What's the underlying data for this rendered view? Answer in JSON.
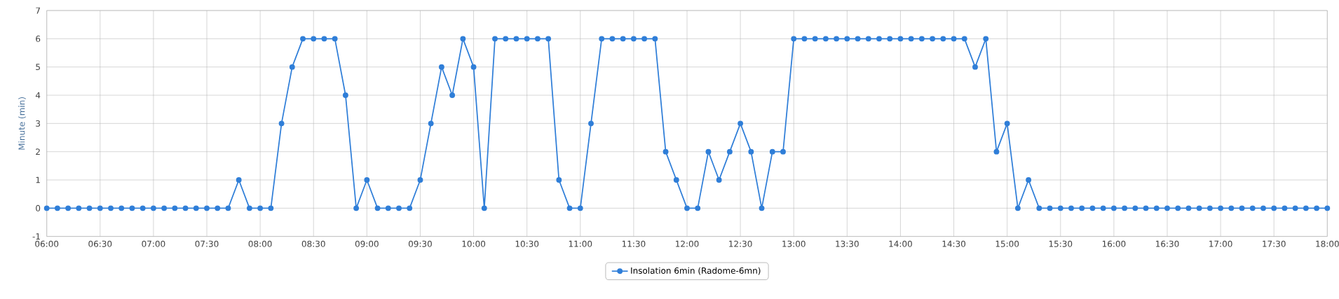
{
  "chart_data": {
    "type": "line",
    "ylabel": "Minute (min)",
    "x": [
      6,
      6.1,
      6.2,
      6.3,
      6.4,
      6.5,
      6.6,
      6.7,
      6.8,
      6.9,
      7,
      7.1,
      7.2,
      7.3,
      7.4,
      7.5,
      7.6,
      7.7,
      7.8,
      7.9,
      8,
      8.1,
      8.2,
      8.3,
      8.4,
      8.5,
      8.6,
      8.7,
      8.8,
      8.9,
      9,
      9.1,
      9.2,
      9.3,
      9.4,
      9.5,
      9.6,
      9.7,
      9.8,
      9.9,
      10,
      10.1,
      10.2,
      10.3,
      10.4,
      10.5,
      10.6,
      10.7,
      10.8,
      10.9,
      11,
      11.1,
      11.2,
      11.3,
      11.4,
      11.5,
      11.6,
      11.7,
      11.8,
      11.9,
      12,
      12.1,
      12.2,
      12.3,
      12.4,
      12.5,
      12.6,
      12.7,
      12.8,
      12.9,
      13,
      13.1,
      13.2,
      13.3,
      13.4,
      13.5,
      13.6,
      13.7,
      13.8,
      13.9,
      14,
      14.1,
      14.2,
      14.3,
      14.4,
      14.5,
      14.6,
      14.7,
      14.8,
      14.9,
      15,
      15.1,
      15.2,
      15.3,
      15.4,
      15.5,
      15.6,
      15.7,
      15.8,
      15.9,
      16,
      16.1,
      16.2,
      16.3,
      16.4,
      16.5,
      16.6,
      16.7,
      16.8,
      16.9,
      17,
      17.1,
      17.2,
      17.3,
      17.4,
      17.5,
      17.6,
      17.7,
      17.8,
      17.9,
      18
    ],
    "series": [
      {
        "name": "Insolation 6min (Radome-6mn)",
        "color": "#2f7ed8",
        "values": [
          0,
          0,
          0,
          0,
          0,
          0,
          0,
          0,
          0,
          0,
          0,
          0,
          0,
          0,
          0,
          0,
          0,
          0,
          1,
          0,
          0,
          0,
          3,
          5,
          6,
          6,
          6,
          6,
          4,
          0,
          1,
          0,
          0,
          0,
          0,
          1,
          3,
          5,
          4,
          6,
          5,
          0,
          6,
          6,
          6,
          6,
          6,
          6,
          1,
          0,
          0,
          3,
          6,
          6,
          6,
          6,
          6,
          6,
          2,
          1,
          0,
          0,
          2,
          1,
          2,
          3,
          2,
          0,
          2,
          2,
          6,
          6,
          6,
          6,
          6,
          6,
          6,
          6,
          6,
          6,
          6,
          6,
          6,
          6,
          6,
          6,
          6,
          5,
          6,
          2,
          3,
          0,
          1,
          0,
          0,
          0,
          0,
          0,
          0,
          0,
          0,
          0,
          0,
          0,
          0,
          0,
          0,
          0,
          0,
          0,
          0,
          0,
          0,
          0,
          0,
          0,
          0,
          0,
          0,
          0,
          0
        ]
      }
    ],
    "xlim": [
      6,
      18
    ],
    "ylim": [
      -1,
      7
    ],
    "xticks": [
      {
        "value": 6,
        "label": "06:00"
      },
      {
        "value": 6.5,
        "label": "06:30"
      },
      {
        "value": 7,
        "label": "07:00"
      },
      {
        "value": 7.5,
        "label": "07:30"
      },
      {
        "value": 8,
        "label": "08:00"
      },
      {
        "value": 8.5,
        "label": "08:30"
      },
      {
        "value": 9,
        "label": "09:00"
      },
      {
        "value": 9.5,
        "label": "09:30"
      },
      {
        "value": 10,
        "label": "10:00"
      },
      {
        "value": 10.5,
        "label": "10:30"
      },
      {
        "value": 11,
        "label": "11:00"
      },
      {
        "value": 11.5,
        "label": "11:30"
      },
      {
        "value": 12,
        "label": "12:00"
      },
      {
        "value": 12.5,
        "label": "12:30"
      },
      {
        "value": 13,
        "label": "13:00"
      },
      {
        "value": 13.5,
        "label": "13:30"
      },
      {
        "value": 14,
        "label": "14:00"
      },
      {
        "value": 14.5,
        "label": "14:30"
      },
      {
        "value": 15,
        "label": "15:00"
      },
      {
        "value": 15.5,
        "label": "15:30"
      },
      {
        "value": 16,
        "label": "16:00"
      },
      {
        "value": 16.5,
        "label": "16:30"
      },
      {
        "value": 17,
        "label": "17:00"
      },
      {
        "value": 17.5,
        "label": "17:30"
      },
      {
        "value": 18,
        "label": "18:00"
      }
    ],
    "yticks": [
      -1,
      0,
      1,
      2,
      3,
      4,
      5,
      6,
      7
    ],
    "grid": true,
    "legend": "bottom",
    "marker": "circle",
    "line_style": "solid"
  }
}
